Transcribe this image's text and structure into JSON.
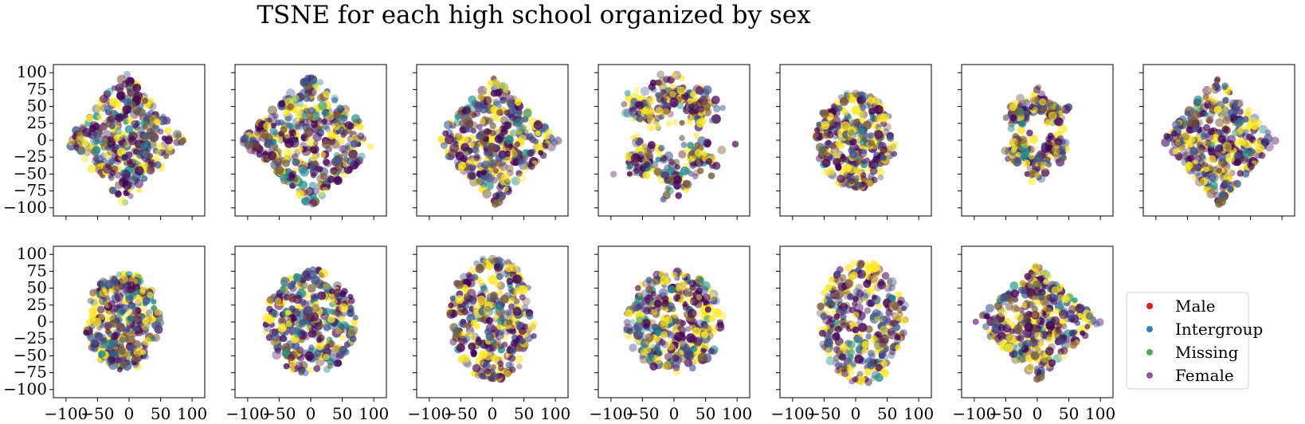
{
  "figure": {
    "title": "TSNE for each high school organized by sex"
  },
  "legend": {
    "placement": "lower-right",
    "entries": [
      {
        "label": "Male",
        "color": "#e41a1c"
      },
      {
        "label": "Intergroup",
        "color": "#377eb8"
      },
      {
        "label": "Missing",
        "color": "#4daf4a"
      },
      {
        "label": "Female",
        "color": "#984ea3"
      }
    ]
  },
  "point_palette": [
    "#440154",
    "#3b528b",
    "#21918c",
    "#fde725",
    "#7a5a3a"
  ],
  "chart_data": {
    "type": "scatter",
    "grid": false,
    "layout": "2 rows x 7 columns, shared axes, last cell holds legend",
    "xlim": [
      -120,
      120
    ],
    "ylim": [
      -112,
      112
    ],
    "x_ticks": [
      -100,
      -50,
      0,
      50,
      100
    ],
    "y_ticks": [
      -100,
      -75,
      -50,
      -25,
      0,
      25,
      50,
      75,
      100
    ],
    "panels": [
      {
        "shape": "diamond",
        "cx": -5,
        "cy": 0,
        "rx": 95,
        "ry": 100,
        "n": 380
      },
      {
        "shape": "diamond",
        "cx": 0,
        "cy": 0,
        "rx": 110,
        "ry": 100,
        "n": 420
      },
      {
        "shape": "diamond",
        "cx": 5,
        "cy": 0,
        "rx": 100,
        "ry": 95,
        "n": 400
      },
      {
        "shape": "clusters",
        "cx": 0,
        "cy": 5,
        "rx": 85,
        "ry": 80,
        "n": 360
      },
      {
        "shape": "blob",
        "cx": 0,
        "cy": 0,
        "rx": 65,
        "ry": 70,
        "n": 340
      },
      {
        "shape": "clusters",
        "cx": 0,
        "cy": 10,
        "rx": 55,
        "ry": 60,
        "n": 260
      },
      {
        "shape": "diamond",
        "cx": 0,
        "cy": 0,
        "rx": 90,
        "ry": 95,
        "n": 380
      },
      {
        "shape": "blob",
        "cx": -10,
        "cy": 0,
        "rx": 60,
        "ry": 72,
        "n": 330
      },
      {
        "shape": "blob",
        "cx": 0,
        "cy": 0,
        "rx": 72,
        "ry": 78,
        "n": 340
      },
      {
        "shape": "blob",
        "cx": 0,
        "cy": 5,
        "rx": 70,
        "ry": 90,
        "n": 360
      },
      {
        "shape": "blob",
        "cx": 0,
        "cy": 0,
        "rx": 78,
        "ry": 75,
        "n": 360
      },
      {
        "shape": "blob",
        "cx": 10,
        "cy": 0,
        "rx": 70,
        "ry": 90,
        "n": 330
      },
      {
        "shape": "diamond",
        "cx": 0,
        "cy": 0,
        "rx": 100,
        "ry": 85,
        "n": 380
      }
    ]
  }
}
